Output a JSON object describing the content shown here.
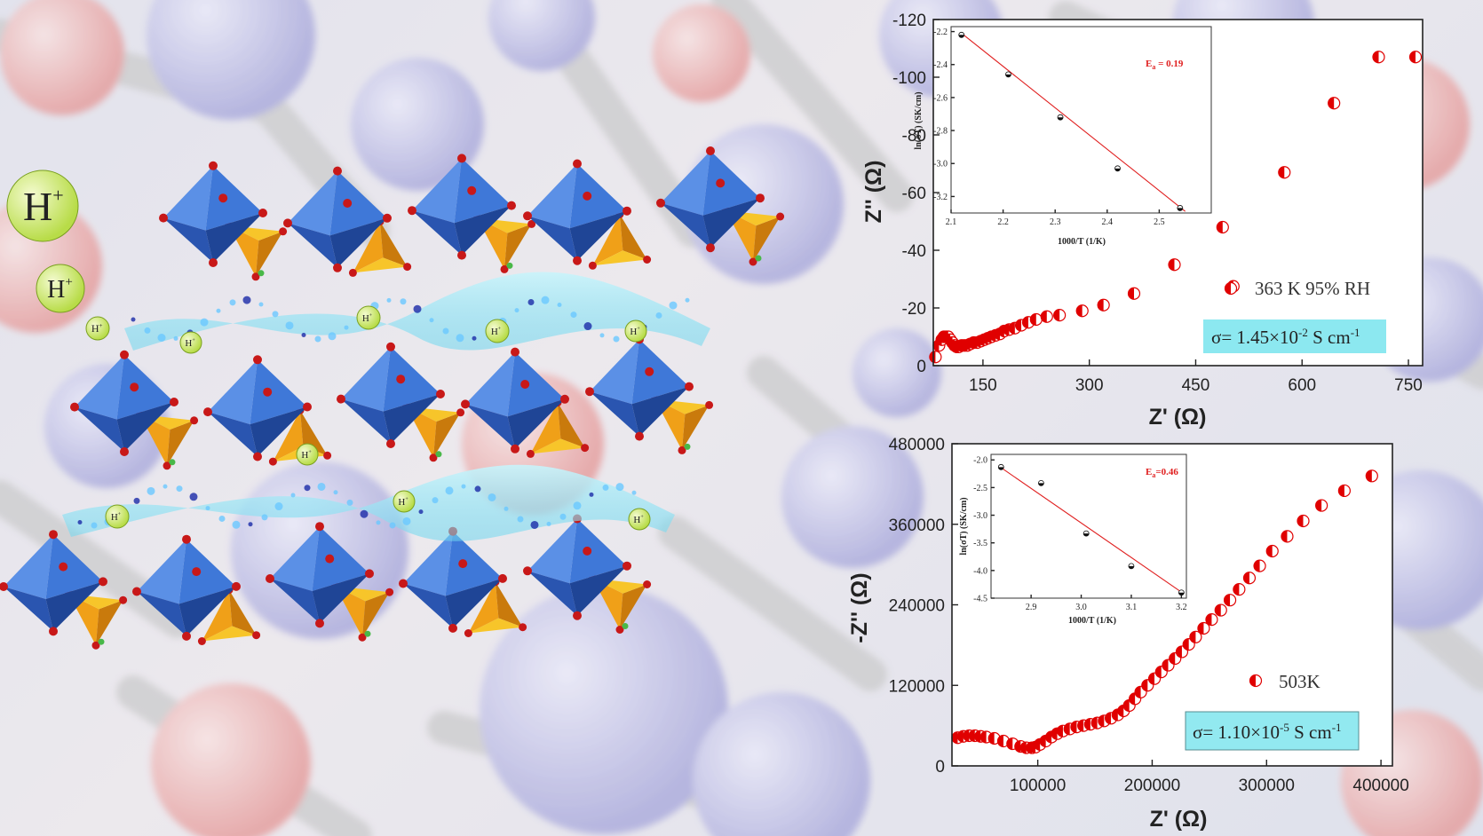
{
  "structure": {
    "ion_label": "H",
    "ion_charge": "+",
    "colors": {
      "octahedra": "#3f78d8",
      "tetrahedra": "#f0a018",
      "oxygen": "#c81818",
      "hydrogen": "#48b848",
      "wave": "#6fd6ee",
      "ion_ball": "#b8dc48"
    }
  },
  "chart_data": [
    {
      "type": "scatter",
      "xlabel": "Z' (Ω)",
      "ylabel": "Z'' (Ω)",
      "xticks": [
        "150",
        "300",
        "450",
        "600",
        "750"
      ],
      "yticks": [
        "0",
        "-20",
        "-40",
        "-60",
        "-80",
        "-100",
        "-120"
      ],
      "xlim": [
        80,
        770
      ],
      "ylim": [
        0,
        -120
      ],
      "legend": "363 K 95% RH",
      "conductivity": {
        "prefix": "σ= 1.45×10",
        "exp": "-2",
        "unit": " S cm",
        "unit_exp": "-1"
      },
      "marker_color": "#e00000",
      "series": [
        {
          "x": [
            83,
            88,
            92,
            95,
            98,
            101,
            104,
            107,
            110,
            113,
            116,
            120,
            124,
            128,
            132,
            137,
            142,
            147,
            152,
            157,
            162,
            168,
            174,
            180,
            187,
            195,
            204,
            214,
            225,
            240,
            258,
            290,
            320,
            363,
            420,
            488,
            503,
            575,
            645,
            708,
            760
          ],
          "y": [
            -3,
            -7,
            -9,
            -10,
            -10,
            -10,
            -9,
            -8,
            -7,
            -6.5,
            -6.5,
            -7,
            -7,
            -7,
            -7.5,
            -8,
            -8,
            -8.5,
            -9,
            -9.5,
            -10,
            -10.5,
            -11,
            -12,
            -12.5,
            -13,
            -14,
            -15,
            -16,
            -17,
            -17.5,
            -19,
            -21,
            -25,
            -35,
            -48,
            -27.5,
            -67,
            -91,
            -107,
            -107
          ]
        }
      ],
      "inset": {
        "xlabel": "1000/T (1/K)",
        "ylabel": "ln(σT) (SK/cm)",
        "xticks": [
          "2.1",
          "2.2",
          "2.3",
          "2.4",
          "2.5"
        ],
        "yticks": [
          "-2.2",
          "-2.4",
          "-2.6",
          "-2.8",
          "-3.0",
          "-3.2"
        ],
        "xlim": [
          2.1,
          2.6
        ],
        "ylim": [
          -3.3,
          -2.17
        ],
        "ea_label": "E",
        "ea_sub": "a",
        "ea_value": " = 0.19",
        "points": {
          "x": [
            2.12,
            2.21,
            2.31,
            2.42,
            2.54
          ],
          "y": [
            -2.22,
            -2.46,
            -2.72,
            -3.03,
            -3.27
          ]
        },
        "fit": {
          "x": [
            2.12,
            2.55
          ],
          "y": [
            -2.21,
            -3.29
          ]
        }
      }
    },
    {
      "type": "scatter",
      "xlabel": "Z' (Ω)",
      "ylabel": "-Z'' (Ω)",
      "xticks": [
        "100000",
        "200000",
        "300000",
        "400000"
      ],
      "yticks": [
        "0",
        "120000",
        "240000",
        "360000",
        "480000"
      ],
      "xlim": [
        25000,
        410000
      ],
      "ylim": [
        0,
        480000
      ],
      "legend": "503K",
      "conductivity": {
        "prefix": "σ= 1.10×10",
        "exp": "-5",
        "unit": " S cm",
        "unit_exp": "-1"
      },
      "marker_color": "#e00000",
      "series": [
        {
          "x": [
            30000,
            35000,
            40000,
            45000,
            50000,
            55000,
            62000,
            70000,
            78000,
            85000,
            90000,
            95000,
            98000,
            102000,
            107000,
            112000,
            117000,
            122000,
            128000,
            134000,
            140000,
            146000,
            152000,
            158000,
            164000,
            170000,
            175000,
            180000,
            185000,
            190000,
            196000,
            202000,
            208000,
            214000,
            220000,
            226000,
            232000,
            238000,
            245000,
            252000,
            260000,
            268000,
            276000,
            285000,
            294000,
            305000,
            318000,
            332000,
            348000,
            368000,
            392000
          ],
          "y": [
            42000,
            44000,
            45000,
            45000,
            44000,
            43000,
            41000,
            37000,
            33000,
            29000,
            27000,
            27000,
            28000,
            32000,
            37000,
            43000,
            48000,
            52000,
            55000,
            58000,
            60000,
            62000,
            64000,
            67000,
            71000,
            76000,
            82000,
            90000,
            100000,
            110000,
            120000,
            130000,
            140000,
            150000,
            160000,
            170000,
            181000,
            192000,
            205000,
            218000,
            232000,
            247000,
            263000,
            280000,
            298000,
            320000,
            342000,
            365000,
            388000,
            410000,
            432000
          ]
        }
      ],
      "inset": {
        "xlabel": "1000/T (1/K)",
        "ylabel": "ln(σT) (SK/cm)",
        "xticks": [
          "2.9",
          "3.0",
          "3.1",
          "3.2"
        ],
        "yticks": [
          "-2.0",
          "-2.5",
          "-3.0",
          "-3.5",
          "-4.0",
          "-4.5"
        ],
        "xlim": [
          2.82,
          3.21
        ],
        "ylim": [
          -4.5,
          -1.9
        ],
        "ea_label": "E",
        "ea_sub": "a",
        "ea_value": "=0.46",
        "points": {
          "x": [
            2.84,
            2.92,
            3.01,
            3.1,
            3.2
          ],
          "y": [
            -2.13,
            -2.42,
            -3.33,
            -3.92,
            -4.4
          ]
        },
        "fit": {
          "x": [
            2.84,
            3.2
          ],
          "y": [
            -2.14,
            -4.39
          ]
        }
      }
    }
  ]
}
